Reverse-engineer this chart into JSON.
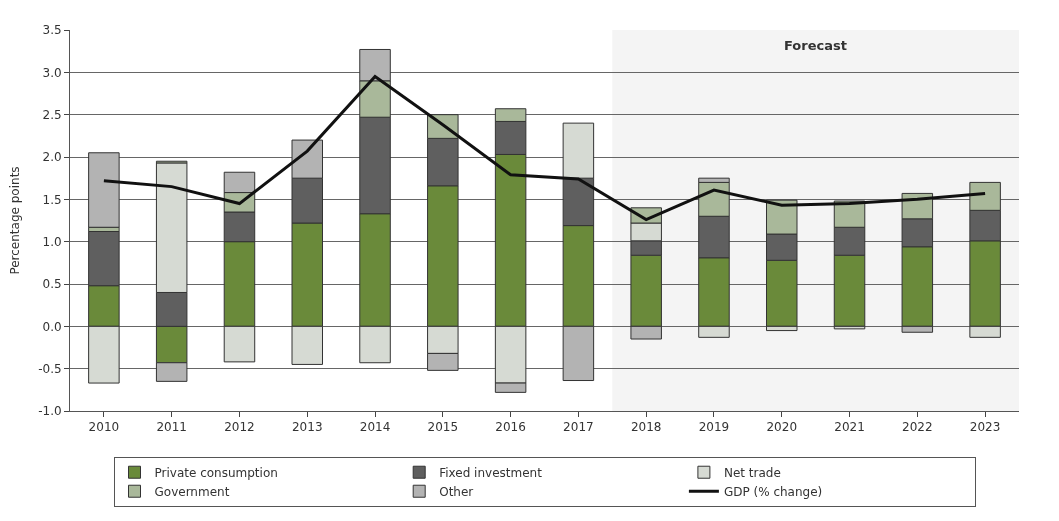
{
  "chart_data": {
    "type": "bar",
    "stacked": true,
    "ylabel": "Percentage points",
    "categories": [
      "2010",
      "2011",
      "2012",
      "2013",
      "2014",
      "2015",
      "2016",
      "2017",
      "2018",
      "2019",
      "2020",
      "2021",
      "2022",
      "2023"
    ],
    "series": [
      {
        "name": "Private consumption",
        "color": "#6a8a3a",
        "values": [
          0.48,
          -0.43,
          1.0,
          1.22,
          1.33,
          1.66,
          2.03,
          1.19,
          0.84,
          0.81,
          0.78,
          0.84,
          0.94,
          1.01
        ]
      },
      {
        "name": "Fixed investment",
        "color": "#5f5f5f",
        "values": [
          0.64,
          0.4,
          0.35,
          0.53,
          1.14,
          0.56,
          0.39,
          0.56,
          0.17,
          0.49,
          0.31,
          0.33,
          0.33,
          0.36
        ]
      },
      {
        "name": "Net trade",
        "color": "#d6dad3",
        "values": [
          -0.67,
          1.53,
          -0.42,
          -0.45,
          -0.43,
          -0.32,
          -0.67,
          0.65,
          0.21,
          -0.13,
          -0.05,
          -0.03,
          null,
          -0.13
        ]
      },
      {
        "name": "Government",
        "color": "#a9b89a",
        "values": [
          0.05,
          0.02,
          0.23,
          null,
          0.43,
          0.28,
          0.15,
          null,
          0.18,
          0.4,
          0.4,
          0.31,
          0.3,
          0.33
        ]
      },
      {
        "name": "Other",
        "color": "#b3b3b3",
        "values": [
          0.88,
          -0.22,
          0.24,
          0.45,
          0.37,
          -0.2,
          -0.11,
          -0.64,
          -0.15,
          0.05,
          null,
          null,
          -0.07,
          null
        ]
      },
      {
        "name": "GDP (% change)",
        "type": "line",
        "color": "#111111",
        "marker": "none",
        "values": [
          1.72,
          1.65,
          1.45,
          2.07,
          2.95,
          2.38,
          1.79,
          1.74,
          1.26,
          1.61,
          1.43,
          1.45,
          1.5,
          1.57
        ]
      }
    ],
    "ylim": [
      -1.0,
      3.5
    ],
    "yticks": [
      {
        "value": -1.0,
        "label": "-1.0"
      },
      {
        "value": -0.5,
        "label": "-0.5"
      },
      {
        "value": 0,
        "label": "0.0"
      },
      {
        "value": 0.5,
        "label": "0.5"
      },
      {
        "value": 1.0,
        "label": "1.0"
      },
      {
        "value": 1.5,
        "label": "1.5"
      },
      {
        "value": 2.0,
        "label": "2.0"
      },
      {
        "value": 2.5,
        "label": "2.5"
      },
      {
        "value": 3.0,
        "label": "3.0"
      },
      {
        "value": 3.5,
        "label": "3.5"
      }
    ],
    "bands": [
      {
        "axis": "x",
        "from": "2018",
        "to": "2023",
        "label": "Forecast",
        "color": "#f4f4f4"
      }
    ],
    "grid": "y",
    "legend": "bottom"
  }
}
